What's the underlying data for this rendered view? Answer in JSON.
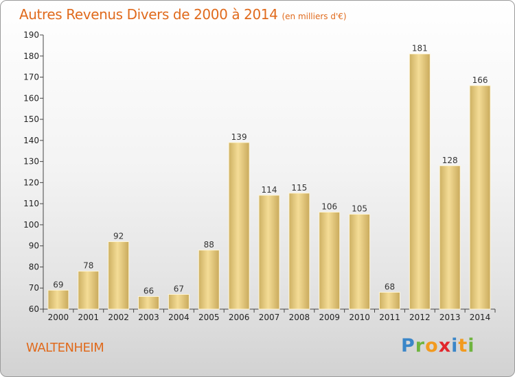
{
  "header": {
    "title": "Autres Revenus Divers de 2000 à 2014",
    "unit": "(en milliers d'€)"
  },
  "footer": {
    "city": "WALTENHEIM",
    "logo_letters": [
      "P",
      "r",
      "o",
      "x",
      "i",
      "t",
      "i"
    ],
    "logo_colors": [
      "#3a86c8",
      "#6fb43f",
      "#f29a1f",
      "#e2262c",
      "#3a86c8",
      "#f29a1f",
      "#6fb43f"
    ]
  },
  "chart_data": {
    "type": "bar",
    "title": "Autres Revenus Divers de 2000 à 2014",
    "subtitle": "(en milliers d'€)",
    "categories": [
      "2000",
      "2001",
      "2002",
      "2003",
      "2004",
      "2005",
      "2006",
      "2007",
      "2008",
      "2009",
      "2010",
      "2011",
      "2012",
      "2013",
      "2014"
    ],
    "values": [
      69,
      78,
      92,
      66,
      67,
      88,
      139,
      114,
      115,
      106,
      105,
      68,
      181,
      128,
      166
    ],
    "ylim": [
      60,
      190
    ],
    "yticks": [
      60,
      70,
      80,
      90,
      100,
      110,
      120,
      130,
      140,
      150,
      160,
      170,
      180,
      190
    ],
    "grid": false,
    "bar_color": "#e2c77c"
  }
}
